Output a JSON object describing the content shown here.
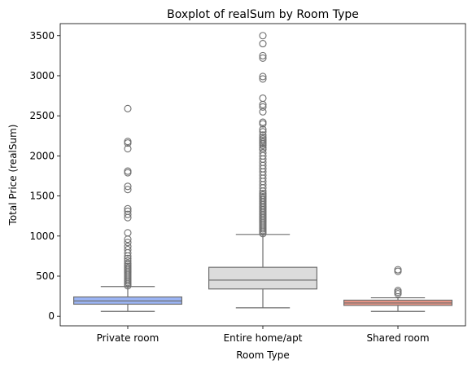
{
  "chart_data": {
    "type": "box",
    "title": "Boxplot of realSum by Room Type",
    "xlabel": "Room Type",
    "ylabel": "Total Price (realSum)",
    "categories": [
      "Private room",
      "Entire home/apt",
      "Shared room"
    ],
    "ylim": [
      -120,
      3650
    ],
    "yticks": [
      0,
      500,
      1000,
      1500,
      2000,
      2500,
      3000,
      3500
    ],
    "grid": false,
    "boxes": [
      {
        "category": "Private room",
        "color": "#9bb5f5",
        "whisker_low": 60,
        "q1": 150,
        "median": 190,
        "q3": 240,
        "whisker_high": 370,
        "outliers": [
          380,
          400,
          420,
          440,
          460,
          480,
          500,
          520,
          540,
          560,
          580,
          600,
          620,
          640,
          660,
          690,
          720,
          750,
          790,
          830,
          870,
          920,
          960,
          1040,
          1230,
          1270,
          1310,
          1340,
          1580,
          1620,
          1790,
          1810,
          2090,
          2160,
          2180,
          2590
        ]
      },
      {
        "category": "Entire home/apt",
        "color": "#dcdcdc",
        "whisker_low": 105,
        "q1": 340,
        "median": 450,
        "q3": 610,
        "whisker_high": 1020,
        "outliers": [
          1030,
          1050,
          1070,
          1090,
          1110,
          1130,
          1150,
          1170,
          1190,
          1210,
          1230,
          1250,
          1270,
          1290,
          1310,
          1330,
          1350,
          1370,
          1390,
          1410,
          1430,
          1450,
          1470,
          1490,
          1510,
          1530,
          1560,
          1600,
          1640,
          1680,
          1720,
          1760,
          1800,
          1840,
          1880,
          1920,
          1960,
          2000,
          2040,
          2080,
          2100,
          2130,
          2150,
          2170,
          2190,
          2210,
          2230,
          2260,
          2300,
          2330,
          2400,
          2420,
          2550,
          2610,
          2640,
          2720,
          2960,
          2990,
          3220,
          3250,
          3400,
          3500
        ]
      },
      {
        "category": "Shared room",
        "color": "#ea9585",
        "whisker_low": 60,
        "q1": 135,
        "median": 165,
        "q3": 200,
        "whisker_high": 230,
        "outliers": [
          280,
          300,
          320,
          560,
          580
        ]
      }
    ]
  }
}
